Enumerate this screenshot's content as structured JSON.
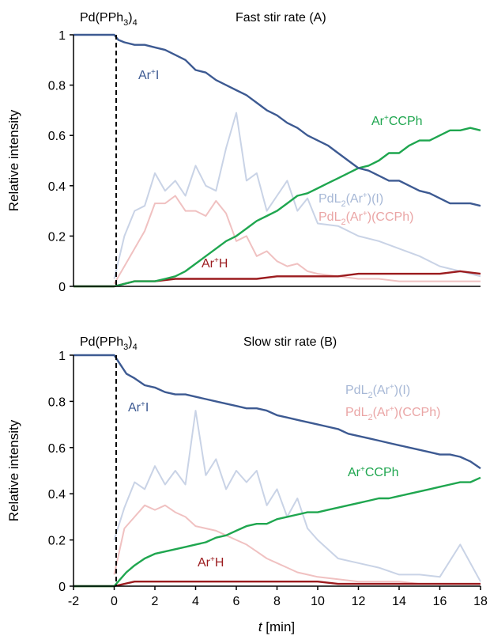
{
  "colors": {
    "ArI": "#3d5a92",
    "ArCCPh": "#1fa64f",
    "ArH": "#9b1b1e",
    "PdL2ArI": "#c9d3e6",
    "PdL2ArCCPh": "#f0c1c1"
  },
  "chart_data": [
    {
      "type": "line",
      "title": "Fast stir rate (A)",
      "annotation": "Pd(PPh3)4",
      "ylabel": "Relative intensity",
      "xlabel": "",
      "xlim": [
        -2,
        18
      ],
      "ylim": [
        0,
        1
      ],
      "yticks": [
        0,
        0.2,
        0.4,
        0.6,
        0.8,
        1
      ],
      "ytick_labels": [
        "0",
        "0.2",
        "0.4",
        "0.6",
        "0.8",
        "1"
      ],
      "addition_time": 0,
      "series": [
        {
          "name": "Ar+I",
          "color_key": "ArI",
          "x": [
            -2,
            0,
            0.2,
            0.5,
            1,
            1.5,
            2,
            2.5,
            3,
            3.5,
            4,
            4.5,
            5,
            5.5,
            6,
            6.5,
            7,
            7.5,
            8,
            8.5,
            9,
            9.5,
            10,
            10.5,
            11,
            11.5,
            12,
            12.5,
            13,
            13.5,
            14,
            14.5,
            15,
            15.5,
            16,
            16.5,
            17,
            17.5,
            18
          ],
          "y": [
            1,
            1,
            0.98,
            0.97,
            0.96,
            0.96,
            0.95,
            0.94,
            0.92,
            0.9,
            0.86,
            0.85,
            0.82,
            0.8,
            0.78,
            0.76,
            0.73,
            0.7,
            0.68,
            0.65,
            0.63,
            0.6,
            0.58,
            0.56,
            0.53,
            0.5,
            0.47,
            0.46,
            0.44,
            0.42,
            0.42,
            0.4,
            0.38,
            0.37,
            0.35,
            0.33,
            0.33,
            0.33,
            0.32
          ]
        },
        {
          "name": "Ar+CCPh",
          "color_key": "ArCCPh",
          "x": [
            -2,
            0,
            0.5,
            1,
            1.5,
            2,
            2.5,
            3,
            3.5,
            4,
            4.5,
            5,
            5.5,
            6,
            6.5,
            7,
            7.5,
            8,
            8.5,
            9,
            9.5,
            10,
            10.5,
            11,
            11.5,
            12,
            12.5,
            13,
            13.5,
            14,
            14.5,
            15,
            15.5,
            16,
            16.5,
            17,
            17.5,
            18
          ],
          "y": [
            0,
            0,
            0.01,
            0.02,
            0.02,
            0.02,
            0.03,
            0.04,
            0.06,
            0.09,
            0.12,
            0.15,
            0.18,
            0.2,
            0.23,
            0.26,
            0.28,
            0.3,
            0.33,
            0.36,
            0.37,
            0.39,
            0.41,
            0.43,
            0.45,
            0.47,
            0.48,
            0.5,
            0.53,
            0.53,
            0.56,
            0.58,
            0.58,
            0.6,
            0.62,
            0.62,
            0.63,
            0.62
          ]
        },
        {
          "name": "Ar+H",
          "color_key": "ArH",
          "x": [
            -2,
            0,
            1,
            2,
            3,
            4,
            5,
            6,
            7,
            8,
            9,
            10,
            11,
            12,
            13,
            14,
            15,
            16,
            17,
            18
          ],
          "y": [
            0,
            0,
            0.02,
            0.02,
            0.03,
            0.03,
            0.03,
            0.03,
            0.03,
            0.04,
            0.04,
            0.04,
            0.04,
            0.05,
            0.05,
            0.05,
            0.05,
            0.05,
            0.06,
            0.05
          ]
        },
        {
          "name": "PdL2(Ar+)(I)",
          "color_key": "PdL2ArI",
          "x": [
            0,
            0.5,
            1,
            1.5,
            2,
            2.5,
            3,
            3.5,
            4,
            4.5,
            5,
            5.5,
            6,
            6.5,
            7,
            7.5,
            8,
            8.5,
            9,
            9.5,
            10,
            11,
            12,
            13,
            14,
            15,
            16,
            17,
            18
          ],
          "y": [
            0.03,
            0.2,
            0.3,
            0.32,
            0.45,
            0.38,
            0.42,
            0.36,
            0.48,
            0.4,
            0.38,
            0.55,
            0.69,
            0.42,
            0.45,
            0.3,
            0.36,
            0.42,
            0.3,
            0.35,
            0.25,
            0.24,
            0.2,
            0.18,
            0.15,
            0.12,
            0.08,
            0.06,
            0.04
          ]
        },
        {
          "name": "PdL2(Ar+)(CCPh)",
          "color_key": "PdL2ArCCPh",
          "x": [
            0,
            0.5,
            1,
            1.5,
            2,
            2.5,
            3,
            3.5,
            4,
            4.5,
            5,
            5.5,
            6,
            6.5,
            7,
            7.5,
            8,
            8.5,
            9,
            9.5,
            10,
            11,
            12,
            13,
            14,
            15,
            16,
            17,
            18
          ],
          "y": [
            0.01,
            0.08,
            0.15,
            0.22,
            0.33,
            0.33,
            0.36,
            0.3,
            0.3,
            0.28,
            0.34,
            0.29,
            0.18,
            0.2,
            0.12,
            0.14,
            0.1,
            0.08,
            0.09,
            0.06,
            0.05,
            0.04,
            0.03,
            0.03,
            0.02,
            0.02,
            0.02,
            0.02,
            0.02
          ]
        }
      ],
      "labels": {
        "ArI": "Ar+I",
        "ArCCPh": "Ar+CCPh",
        "ArH": "Ar+H",
        "PdL2ArI": "PdL2(Ar+)(I)",
        "PdL2ArCCPh": "PdL2(Ar+)(CCPh)"
      }
    },
    {
      "type": "line",
      "title": "Slow stir rate (B)",
      "annotation": "Pd(PPh3)4",
      "ylabel": "Relative intensity",
      "xlabel": "t [min]",
      "xlim": [
        -2,
        18
      ],
      "ylim": [
        0,
        1
      ],
      "xticks": [
        -2,
        0,
        2,
        4,
        6,
        8,
        10,
        12,
        14,
        16,
        18
      ],
      "xtick_labels": [
        "-2",
        "0",
        "2",
        "4",
        "6",
        "8",
        "10",
        "12",
        "14",
        "16",
        "18"
      ],
      "yticks": [
        0,
        0.2,
        0.4,
        0.6,
        0.8,
        1
      ],
      "ytick_labels": [
        "0",
        "0.2",
        "0.4",
        "0.6",
        "0.8",
        "1"
      ],
      "addition_time": 0,
      "series": [
        {
          "name": "Ar+I",
          "color_key": "ArI",
          "x": [
            -2,
            0,
            0.3,
            0.6,
            1,
            1.5,
            2,
            2.5,
            3,
            3.5,
            4,
            4.5,
            5,
            5.5,
            6,
            6.5,
            7,
            7.5,
            8,
            8.5,
            9,
            9.5,
            10,
            10.5,
            11,
            11.5,
            12,
            12.5,
            13,
            13.5,
            14,
            14.5,
            15,
            15.5,
            16,
            16.5,
            17,
            17.5,
            18
          ],
          "y": [
            1,
            1,
            0.96,
            0.92,
            0.9,
            0.87,
            0.86,
            0.84,
            0.83,
            0.83,
            0.82,
            0.81,
            0.8,
            0.79,
            0.78,
            0.77,
            0.77,
            0.76,
            0.74,
            0.73,
            0.72,
            0.71,
            0.7,
            0.69,
            0.68,
            0.66,
            0.65,
            0.64,
            0.63,
            0.62,
            0.61,
            0.6,
            0.59,
            0.58,
            0.57,
            0.57,
            0.56,
            0.54,
            0.51
          ]
        },
        {
          "name": "Ar+CCPh",
          "color_key": "ArCCPh",
          "x": [
            -2,
            0,
            0.3,
            0.6,
            1,
            1.5,
            2,
            2.5,
            3,
            3.5,
            4,
            4.5,
            5,
            5.5,
            6,
            6.5,
            7,
            7.5,
            8,
            8.5,
            9,
            9.5,
            10,
            10.5,
            11,
            11.5,
            12,
            12.5,
            13,
            13.5,
            14,
            14.5,
            15,
            15.5,
            16,
            16.5,
            17,
            17.5,
            18
          ],
          "y": [
            0,
            0,
            0.03,
            0.06,
            0.09,
            0.12,
            0.14,
            0.15,
            0.16,
            0.17,
            0.18,
            0.19,
            0.21,
            0.22,
            0.24,
            0.26,
            0.27,
            0.27,
            0.29,
            0.3,
            0.31,
            0.32,
            0.32,
            0.33,
            0.34,
            0.35,
            0.36,
            0.37,
            0.38,
            0.38,
            0.39,
            0.4,
            0.41,
            0.42,
            0.43,
            0.44,
            0.45,
            0.45,
            0.47
          ]
        },
        {
          "name": "Ar+H",
          "color_key": "ArH",
          "x": [
            -2,
            0,
            1,
            2,
            3,
            4,
            5,
            6,
            7,
            8,
            9,
            10,
            11,
            12,
            13,
            14,
            15,
            16,
            17,
            18
          ],
          "y": [
            0,
            0,
            0.02,
            0.02,
            0.02,
            0.02,
            0.02,
            0.02,
            0.02,
            0.02,
            0.02,
            0.02,
            0.01,
            0.01,
            0.01,
            0.01,
            0.01,
            0.01,
            0.01,
            0.01
          ]
        },
        {
          "name": "PdL2(Ar+)(I)",
          "color_key": "PdL2ArI",
          "x": [
            0,
            0.5,
            1,
            1.5,
            2,
            2.5,
            3,
            3.5,
            4,
            4.5,
            5,
            5.5,
            6,
            6.5,
            7,
            7.5,
            8,
            8.5,
            9,
            9.5,
            10,
            11,
            12,
            13,
            14,
            15,
            16,
            17,
            18
          ],
          "y": [
            0.2,
            0.34,
            0.45,
            0.42,
            0.52,
            0.44,
            0.5,
            0.44,
            0.76,
            0.48,
            0.55,
            0.42,
            0.5,
            0.45,
            0.5,
            0.35,
            0.42,
            0.3,
            0.38,
            0.25,
            0.2,
            0.12,
            0.1,
            0.08,
            0.05,
            0.05,
            0.04,
            0.18,
            0.02
          ]
        },
        {
          "name": "PdL2(Ar+)(CCPh)",
          "color_key": "PdL2ArCCPh",
          "x": [
            0,
            0.5,
            1,
            1.5,
            2,
            2.5,
            3,
            3.5,
            4,
            4.5,
            5,
            5.5,
            6,
            6.5,
            7,
            7.5,
            8,
            8.5,
            9,
            9.5,
            10,
            11,
            12,
            13,
            14,
            15,
            16,
            17,
            18
          ],
          "y": [
            0.05,
            0.25,
            0.3,
            0.35,
            0.33,
            0.35,
            0.32,
            0.3,
            0.26,
            0.25,
            0.24,
            0.22,
            0.2,
            0.18,
            0.15,
            0.12,
            0.1,
            0.08,
            0.06,
            0.05,
            0.04,
            0.03,
            0.02,
            0.02,
            0.02,
            0.01,
            0.01,
            0.01,
            0.01
          ]
        }
      ],
      "labels": {
        "ArI": "Ar+I",
        "ArCCPh": "Ar+CCPh",
        "ArH": "Ar+H",
        "PdL2ArI": "PdL2(Ar+)(I)",
        "PdL2ArCCPh": "PdL2(Ar+)(CCPh)"
      }
    }
  ]
}
